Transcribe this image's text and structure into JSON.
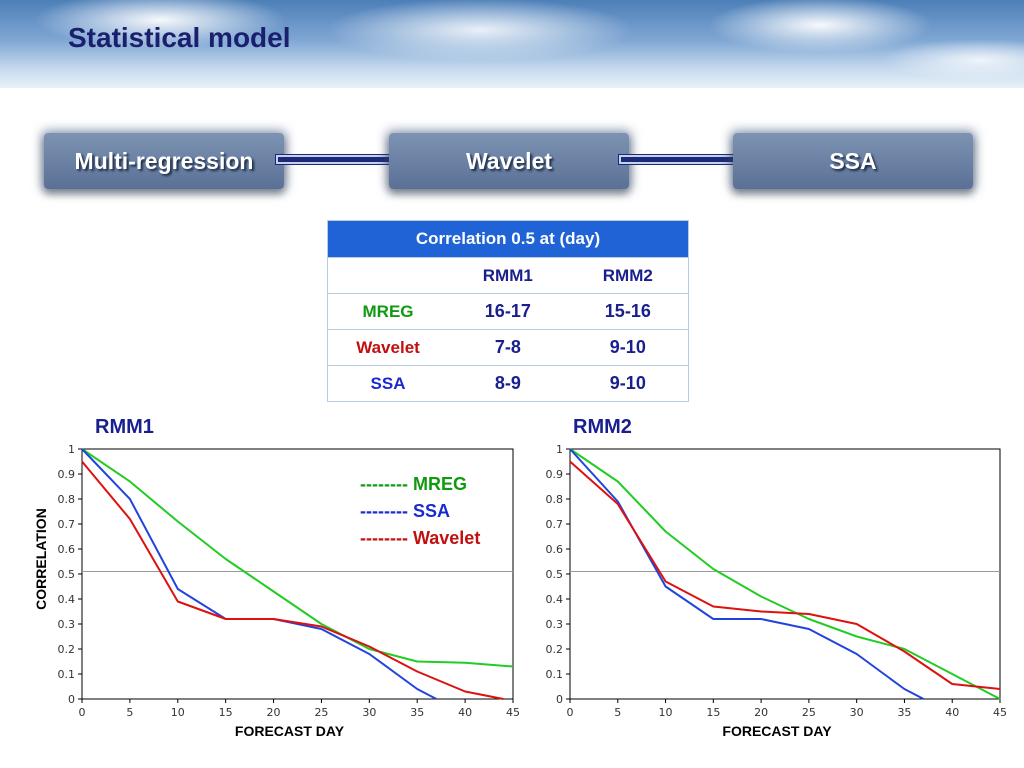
{
  "slide": {
    "title": "Statistical model",
    "flow": [
      "Multi-regression",
      "Wavelet",
      "SSA"
    ]
  },
  "table": {
    "caption": "Correlation 0.5 at (day)",
    "columns": [
      "",
      "RMM1",
      "RMM2"
    ],
    "rows": [
      {
        "label": "MREG",
        "color": "#109a10",
        "values": [
          "16-17",
          "15-16"
        ]
      },
      {
        "label": "Wavelet",
        "color": "#c01010",
        "values": [
          "7-8",
          "9-10"
        ]
      },
      {
        "label": "SSA",
        "color": "#1a2ad0",
        "values": [
          "8-9",
          "9-10"
        ]
      }
    ]
  },
  "legend": [
    {
      "label": "-------- MREG",
      "color": "#109a10"
    },
    {
      "label": "-------- SSA",
      "color": "#1a2ad0"
    },
    {
      "label": "-------- Wavelet",
      "color": "#c01010"
    }
  ],
  "colors": {
    "MREG": "#22cc22",
    "SSA": "#2244dd",
    "Wavelet": "#dd1111"
  },
  "chart_data": [
    {
      "type": "line",
      "title": "RMM1",
      "xlabel": "FORECAST DAY",
      "ylabel": "CORRELATION",
      "xlim": [
        0,
        45
      ],
      "ylim": [
        0,
        1
      ],
      "xticks": [
        0,
        5,
        10,
        15,
        20,
        25,
        30,
        35,
        40,
        45
      ],
      "yticks": [
        0,
        0.1,
        0.2,
        0.3,
        0.4,
        0.5,
        0.6,
        0.7,
        0.8,
        0.9,
        1
      ],
      "reference_line": 0.51,
      "series": [
        {
          "name": "MREG",
          "x": [
            0,
            5,
            10,
            15,
            20,
            25,
            30,
            35,
            40,
            45
          ],
          "values": [
            1.0,
            0.87,
            0.71,
            0.56,
            0.43,
            0.3,
            0.2,
            0.15,
            0.145,
            0.13
          ]
        },
        {
          "name": "SSA",
          "x": [
            0,
            5,
            10,
            15,
            20,
            25,
            30,
            35,
            37
          ],
          "values": [
            1.0,
            0.8,
            0.44,
            0.32,
            0.32,
            0.28,
            0.18,
            0.04,
            0.0
          ]
        },
        {
          "name": "Wavelet",
          "x": [
            0,
            5,
            10,
            15,
            20,
            25,
            30,
            35,
            40,
            44
          ],
          "values": [
            0.95,
            0.72,
            0.39,
            0.32,
            0.32,
            0.29,
            0.21,
            0.11,
            0.03,
            0.0
          ]
        }
      ]
    },
    {
      "type": "line",
      "title": "RMM2",
      "xlabel": "FORECAST DAY",
      "ylabel": "",
      "xlim": [
        0,
        45
      ],
      "ylim": [
        0,
        1
      ],
      "xticks": [
        0,
        5,
        10,
        15,
        20,
        25,
        30,
        35,
        40,
        45
      ],
      "yticks": [
        0,
        0.1,
        0.2,
        0.3,
        0.4,
        0.5,
        0.6,
        0.7,
        0.8,
        0.9,
        1
      ],
      "reference_line": 0.51,
      "series": [
        {
          "name": "MREG",
          "x": [
            0,
            5,
            10,
            15,
            20,
            25,
            30,
            35,
            40,
            45
          ],
          "values": [
            1.0,
            0.87,
            0.67,
            0.52,
            0.41,
            0.32,
            0.25,
            0.2,
            0.1,
            0.0
          ]
        },
        {
          "name": "SSA",
          "x": [
            0,
            5,
            10,
            15,
            20,
            25,
            30,
            35,
            37
          ],
          "values": [
            1.0,
            0.79,
            0.45,
            0.32,
            0.32,
            0.28,
            0.18,
            0.04,
            0.0
          ]
        },
        {
          "name": "Wavelet",
          "x": [
            0,
            5,
            10,
            15,
            20,
            25,
            30,
            35,
            40,
            45
          ],
          "values": [
            0.95,
            0.78,
            0.47,
            0.37,
            0.35,
            0.34,
            0.3,
            0.19,
            0.06,
            0.04
          ]
        }
      ]
    }
  ]
}
